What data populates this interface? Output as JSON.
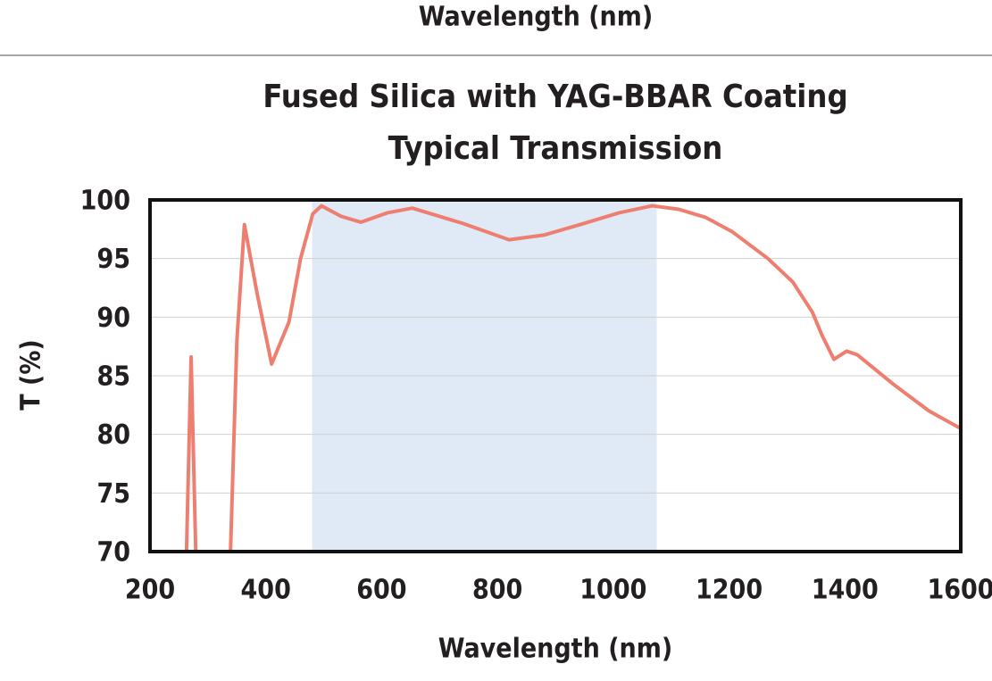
{
  "header_text": "Wavelength (nm)",
  "chart_data": {
    "type": "line",
    "title_lines": [
      "Fused Silica with YAG-BBAR Coating",
      "Typical Transmission"
    ],
    "xlabel": "Wavelength (nm)",
    "ylabel": "T (%)",
    "xlim": [
      200,
      1600
    ],
    "ylim": [
      70,
      100
    ],
    "xticks": [
      200,
      400,
      600,
      800,
      1000,
      1200,
      1400,
      1600
    ],
    "yticks": [
      70,
      75,
      80,
      85,
      90,
      95,
      100
    ],
    "grid": true,
    "shaded_region": {
      "x": [
        480,
        1075
      ],
      "color": "#dfeaf6"
    },
    "x": [
      263,
      271,
      279,
      300,
      339,
      350,
      363,
      385,
      410,
      440,
      460,
      481,
      496,
      530,
      564,
      610,
      653,
      740,
      820,
      880,
      943,
      1010,
      1067,
      1113,
      1160,
      1205,
      1267,
      1310,
      1344,
      1360,
      1381,
      1403,
      1421,
      1483,
      1545,
      1600
    ],
    "series": [
      {
        "name": "T",
        "color": "#ee7f70",
        "values": [
          70,
          86.6,
          70,
          null,
          70,
          88,
          97.9,
          92,
          86.0,
          89.6,
          95,
          98.8,
          99.5,
          98.6,
          98.1,
          98.9,
          99.3,
          98.0,
          96.6,
          97.0,
          97.9,
          98.9,
          99.5,
          99.2,
          98.5,
          97.3,
          95.0,
          93.0,
          90.4,
          88.5,
          86.4,
          87.1,
          86.8,
          84.3,
          82.0,
          80.5
        ]
      }
    ]
  }
}
